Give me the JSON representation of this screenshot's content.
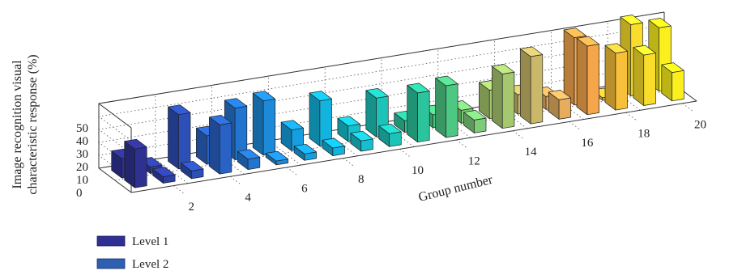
{
  "chart_data": {
    "type": "bar",
    "title": "",
    "xlabel": "Group number",
    "ylabel_line1": "Image recognition visual",
    "ylabel_line2": "characteristic response (%)",
    "x": [
      1,
      2,
      3,
      4,
      5,
      6,
      7,
      8,
      9,
      10,
      11,
      12,
      13,
      14,
      15,
      16,
      17,
      18,
      19,
      20
    ],
    "x_tick_labels": [
      "2",
      "4",
      "6",
      "8",
      "10",
      "12",
      "14",
      "16",
      "18",
      "20"
    ],
    "z_ticks": [
      "0",
      "10",
      "20",
      "30",
      "40",
      "50"
    ],
    "zlim": [
      0,
      50
    ],
    "grid": true,
    "legend_position": "bottom-left",
    "series": [
      {
        "name": "Level 1",
        "values": [
          30,
          5,
          6,
          38,
          8,
          3,
          5,
          6,
          8,
          10,
          38,
          40,
          10,
          42,
          52,
          15,
          53,
          44,
          39,
          22
        ],
        "legend_color": "#2e3192"
      },
      {
        "name": "Level 2",
        "values": [
          15,
          5,
          42,
          22,
          40,
          42,
          16,
          35,
          12,
          30,
          9,
          10,
          10,
          22,
          15,
          10,
          52,
          2,
          55,
          49
        ],
        "legend_color": "#2f5fb3"
      }
    ],
    "bar_colors": [
      "#2e3192",
      "#2d3fa6",
      "#2c4fb8",
      "#2962c4",
      "#2275cf",
      "#1c8ad9",
      "#169fe0",
      "#12b4df",
      "#16bfcf",
      "#1cc3b8",
      "#2bc49c",
      "#4dc883",
      "#7ccc78",
      "#a5c76f",
      "#c9b869",
      "#e6ad5f",
      "#f5a64a",
      "#f8c03a",
      "#f9dd2a",
      "#fbf01d"
    ]
  }
}
